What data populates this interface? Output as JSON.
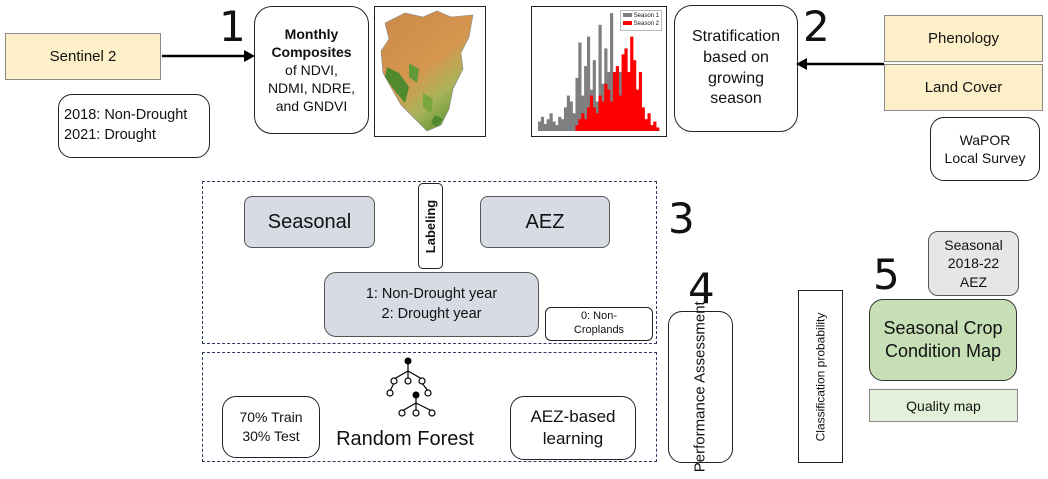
{
  "step_numbers": {
    "s1": "1",
    "s2": "2",
    "s3": "3",
    "s4": "4",
    "s5": "5"
  },
  "inputs": {
    "sentinel": "Sentinel 2",
    "years": "2018: Non-Drought\n2021: Drought",
    "composites_title": "Monthly Composites",
    "composites_text": "of NDVI,\nNDMI, NDRE,\nand GNDVI",
    "phenology": "Phenology",
    "land_cover": "Land Cover",
    "wapor": "WaPOR\nLocal Survey",
    "stratification": "Stratification\nbased on\ngrowing\nseason"
  },
  "histogram": {
    "legend": [
      "Season 1",
      "Season 2"
    ],
    "series_colors": [
      "#7f7f7f",
      "#ff0000"
    ],
    "season1": [
      0.08,
      0.12,
      0.06,
      0.1,
      0.15,
      0.08,
      0.05,
      0.12,
      0.1,
      0.2,
      0.3,
      0.25,
      0.15,
      0.45,
      0.75,
      0.3,
      0.55,
      0.8,
      0.35,
      0.6,
      0.25,
      0.9,
      0.4,
      0.7,
      0.5,
      1.0,
      0.3,
      0.2,
      0.5,
      0.15,
      0.35,
      0.2,
      0.1,
      0.15,
      0.05,
      0.1,
      0.08,
      0.04,
      0.06,
      0.03,
      0.05,
      0.02
    ],
    "season2": [
      0,
      0,
      0,
      0,
      0,
      0,
      0,
      0,
      0,
      0,
      0,
      0,
      0,
      0.05,
      0.1,
      0.15,
      0.1,
      0.2,
      0.3,
      0.2,
      0.15,
      0.3,
      0.25,
      0.4,
      0.35,
      0.25,
      0.5,
      0.55,
      0.3,
      0.65,
      0.7,
      0.5,
      0.8,
      0.6,
      0.35,
      0.5,
      0.2,
      0.1,
      0.15,
      0.05,
      0.08,
      0.03
    ]
  },
  "labeling": {
    "seasonal": "Seasonal",
    "aez": "AEZ",
    "labeling": "Labeling",
    "classes": "1: Non-Drought year\n2: Drought year",
    "non_crop": "0: Non-\nCroplands"
  },
  "model": {
    "split": "70% Train\n30% Test",
    "rf": "Random Forest",
    "aez_learning": "AEZ-based\nlearning"
  },
  "performance": "Performance\nAssessment",
  "probability": "Classification probability",
  "outputs": {
    "seasonal_aez": "Seasonal\n2018-22\nAEZ",
    "condition_map": "Seasonal Crop\nCondition Map",
    "quality_map": "Quality map"
  }
}
